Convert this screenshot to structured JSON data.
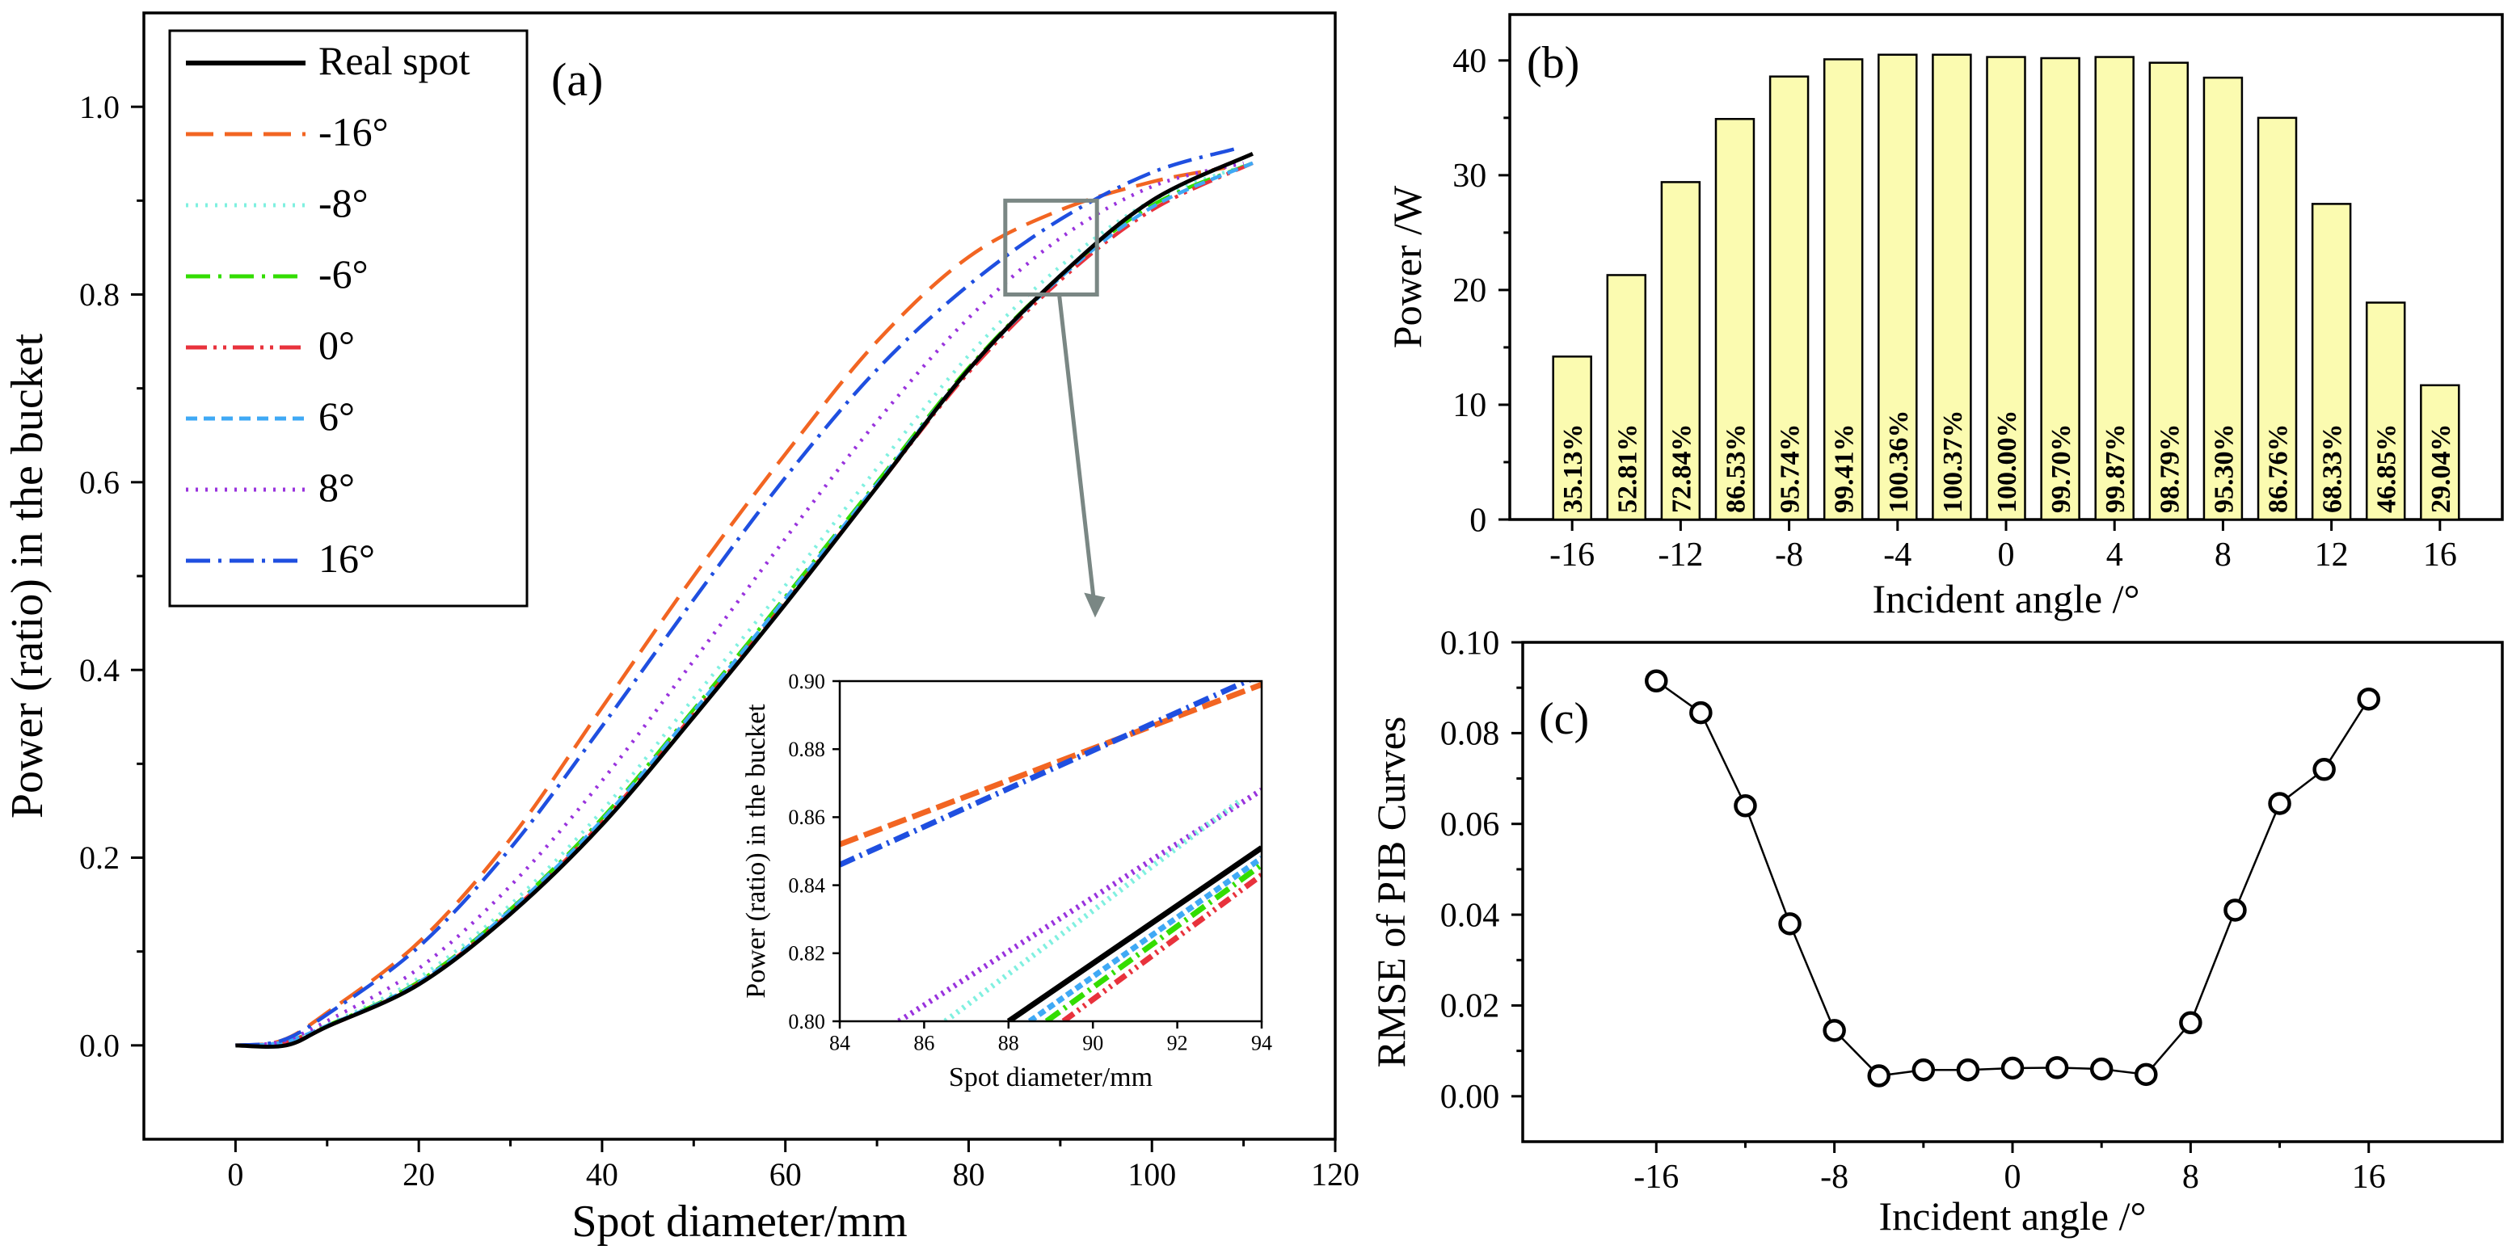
{
  "chart_data": [
    {
      "id": "a",
      "type": "line",
      "panel_label": "(a)",
      "xlabel": "Spot diameter/mm",
      "ylabel": "Power (ratio) in the bucket",
      "xlim": [
        -10,
        120
      ],
      "ylim": [
        -0.1,
        1.1
      ],
      "xticks": [
        0,
        20,
        40,
        60,
        80,
        100,
        120
      ],
      "xtick_labels": [
        "0",
        "20",
        "40",
        "60",
        "80",
        "100",
        "120"
      ],
      "yticks": [
        0.0,
        0.2,
        0.4,
        0.6,
        0.8,
        1.0
      ],
      "ytick_labels": [
        "0.0",
        "0.2",
        "0.4",
        "0.6",
        "0.8",
        "1.0"
      ],
      "legend_position": "top-left",
      "series": [
        {
          "name": "Real spot",
          "color": "#000000",
          "dash": "solid",
          "x": [
            0,
            5.5,
            10,
            20,
            30,
            40,
            50,
            60,
            70,
            80,
            90,
            100,
            111
          ],
          "y": [
            0,
            0,
            0.02,
            0.065,
            0.14,
            0.235,
            0.35,
            0.47,
            0.595,
            0.72,
            0.82,
            0.9,
            0.95
          ]
        },
        {
          "name": "-16°",
          "color": "#f26522",
          "dash": "longdash",
          "x": [
            0,
            5,
            10,
            20,
            30,
            40,
            50,
            60,
            70,
            80,
            90,
            100,
            108
          ],
          "y": [
            0,
            0.005,
            0.035,
            0.11,
            0.22,
            0.36,
            0.5,
            0.63,
            0.75,
            0.84,
            0.89,
            0.92,
            0.935
          ]
        },
        {
          "name": "-8°",
          "color": "#80f0e0",
          "dash": "dot",
          "x": [
            0,
            5,
            10,
            20,
            30,
            40,
            50,
            60,
            70,
            80,
            90,
            100,
            111
          ],
          "y": [
            0,
            0.003,
            0.022,
            0.072,
            0.15,
            0.25,
            0.37,
            0.49,
            0.615,
            0.735,
            0.83,
            0.9,
            0.94
          ]
        },
        {
          "name": "-6°",
          "color": "#33dd00",
          "dash": "dashdot",
          "x": [
            0,
            5,
            10,
            20,
            30,
            40,
            50,
            60,
            70,
            80,
            90,
            100,
            111
          ],
          "y": [
            0,
            0.003,
            0.021,
            0.068,
            0.145,
            0.242,
            0.358,
            0.478,
            0.6,
            0.722,
            0.82,
            0.895,
            0.94
          ]
        },
        {
          "name": "0°",
          "color": "#e8323c",
          "dash": "dashdotdot",
          "x": [
            0,
            5,
            10,
            20,
            30,
            40,
            50,
            60,
            70,
            80,
            90,
            100,
            111
          ],
          "y": [
            0,
            0.003,
            0.02,
            0.066,
            0.142,
            0.238,
            0.353,
            0.472,
            0.595,
            0.717,
            0.815,
            0.89,
            0.94
          ]
        },
        {
          "name": "6°",
          "color": "#3fa9f5",
          "dash": "shortdash",
          "x": [
            0,
            5,
            10,
            20,
            30,
            40,
            50,
            60,
            70,
            80,
            90,
            100,
            111
          ],
          "y": [
            0,
            0.003,
            0.021,
            0.067,
            0.144,
            0.24,
            0.356,
            0.476,
            0.598,
            0.72,
            0.818,
            0.893,
            0.94
          ]
        },
        {
          "name": "8°",
          "color": "#9933dd",
          "dash": "dot",
          "x": [
            0,
            5,
            10,
            20,
            30,
            40,
            50,
            60,
            70,
            80,
            90,
            100,
            110
          ],
          "y": [
            0,
            0.004,
            0.026,
            0.082,
            0.17,
            0.282,
            0.41,
            0.54,
            0.665,
            0.775,
            0.86,
            0.915,
            0.94
          ]
        },
        {
          "name": "16°",
          "color": "#1f4fe0",
          "dash": "dashdot",
          "x": [
            0,
            5,
            10,
            20,
            30,
            40,
            50,
            60,
            70,
            80,
            90,
            100,
            109
          ],
          "y": [
            0,
            0.005,
            0.033,
            0.105,
            0.21,
            0.34,
            0.475,
            0.605,
            0.72,
            0.81,
            0.88,
            0.93,
            0.955
          ]
        }
      ]
    },
    {
      "id": "inset",
      "type": "line",
      "xlabel": "Spot diameter/mm",
      "ylabel": "Power (ratio) in the bucket",
      "xlim": [
        84,
        94
      ],
      "ylim": [
        0.8,
        0.9
      ],
      "xticks": [
        84,
        86,
        88,
        90,
        92,
        94
      ],
      "xtick_labels": [
        "84",
        "86",
        "88",
        "90",
        "92",
        "94"
      ],
      "yticks": [
        0.8,
        0.82,
        0.84,
        0.86,
        0.88,
        0.9
      ],
      "ytick_labels": [
        "0.80",
        "0.82",
        "0.84",
        "0.86",
        "0.88",
        "0.90"
      ],
      "series": [
        {
          "name": "-16°",
          "color": "#f26522",
          "dash": "longdash",
          "x": [
            84,
            94
          ],
          "y": [
            0.852,
            0.899
          ]
        },
        {
          "name": "16°",
          "color": "#1f4fe0",
          "dash": "dashdot",
          "x": [
            84,
            94
          ],
          "y": [
            0.846,
            0.902
          ]
        },
        {
          "name": "8°",
          "color": "#9933dd",
          "dash": "dot",
          "x": [
            85.4,
            94
          ],
          "y": [
            0.8,
            0.868
          ]
        },
        {
          "name": "-8°",
          "color": "#80f0e0",
          "dash": "dot",
          "x": [
            86.5,
            93.5
          ],
          "y": [
            0.8,
            0.865
          ]
        },
        {
          "name": "Real spot",
          "color": "#000000",
          "dash": "solid",
          "x": [
            88,
            94
          ],
          "y": [
            0.8,
            0.851
          ]
        },
        {
          "name": "6°",
          "color": "#3fa9f5",
          "dash": "shortdash",
          "x": [
            88.5,
            94
          ],
          "y": [
            0.8,
            0.848
          ]
        },
        {
          "name": "-6°",
          "color": "#33dd00",
          "dash": "dashdot",
          "x": [
            88.9,
            94
          ],
          "y": [
            0.8,
            0.846
          ]
        },
        {
          "name": "0°",
          "color": "#e8323c",
          "dash": "dashdotdot",
          "x": [
            89.3,
            94
          ],
          "y": [
            0.8,
            0.843
          ]
        }
      ]
    },
    {
      "id": "b",
      "type": "bar",
      "panel_label": "(b)",
      "xlabel": "Incident angle /°",
      "ylabel": "Power /W",
      "bar_color": "#fbfbb0",
      "xlim": [
        -18.3,
        18.3
      ],
      "ylim": [
        0,
        44
      ],
      "xticks": [
        -16,
        -12,
        -8,
        -4,
        0,
        4,
        8,
        12,
        16
      ],
      "xtick_labels": [
        "-16",
        "-12",
        "-8",
        "-4",
        "0",
        "4",
        "8",
        "12",
        "16"
      ],
      "yticks": [
        0,
        10,
        20,
        30,
        40
      ],
      "ytick_labels": [
        "0",
        "10",
        "20",
        "30",
        "40"
      ],
      "x": [
        -16,
        -14,
        -12,
        -10,
        -8,
        -6,
        -4,
        -2,
        0,
        2,
        4,
        6,
        8,
        10,
        12,
        14,
        16
      ],
      "values": [
        14.2,
        21.3,
        29.4,
        34.9,
        38.6,
        40.1,
        40.5,
        40.5,
        40.3,
        40.2,
        40.3,
        39.8,
        38.5,
        35.0,
        27.5,
        18.9,
        11.7
      ],
      "labels": [
        "35.13%",
        "52.81%",
        "72.84%",
        "86.53%",
        "95.74%",
        "99.41%",
        "100.36%",
        "100.37%",
        "100.00%",
        "99.70%",
        "99.87%",
        "98.79%",
        "95.30%",
        "86.76%",
        "68.33%",
        "46.85%",
        "29.04%"
      ]
    },
    {
      "id": "c",
      "type": "scatter",
      "panel_label": "(c)",
      "xlabel": "Incident angle /°",
      "ylabel": "RMSE of PIB Curves",
      "xlim": [
        -22,
        22
      ],
      "ylim": [
        -0.01,
        0.1
      ],
      "xticks": [
        -16,
        -8,
        0,
        8,
        16
      ],
      "xtick_labels": [
        "-16",
        "-8",
        "0",
        "8",
        "16"
      ],
      "yticks": [
        0.0,
        0.02,
        0.04,
        0.06,
        0.08,
        0.1
      ],
      "ytick_labels": [
        "0.00",
        "0.02",
        "0.04",
        "0.06",
        "0.08",
        "0.10"
      ],
      "x": [
        -16,
        -14,
        -12,
        -10,
        -8,
        -6,
        -4,
        -2,
        0,
        2,
        4,
        6,
        8,
        10,
        12,
        14,
        16
      ],
      "y": [
        0.0915,
        0.0845,
        0.064,
        0.038,
        0.0145,
        0.0045,
        0.0058,
        0.0058,
        0.0062,
        0.0063,
        0.006,
        0.0048,
        0.0162,
        0.041,
        0.0645,
        0.072,
        0.0875
      ]
    }
  ]
}
